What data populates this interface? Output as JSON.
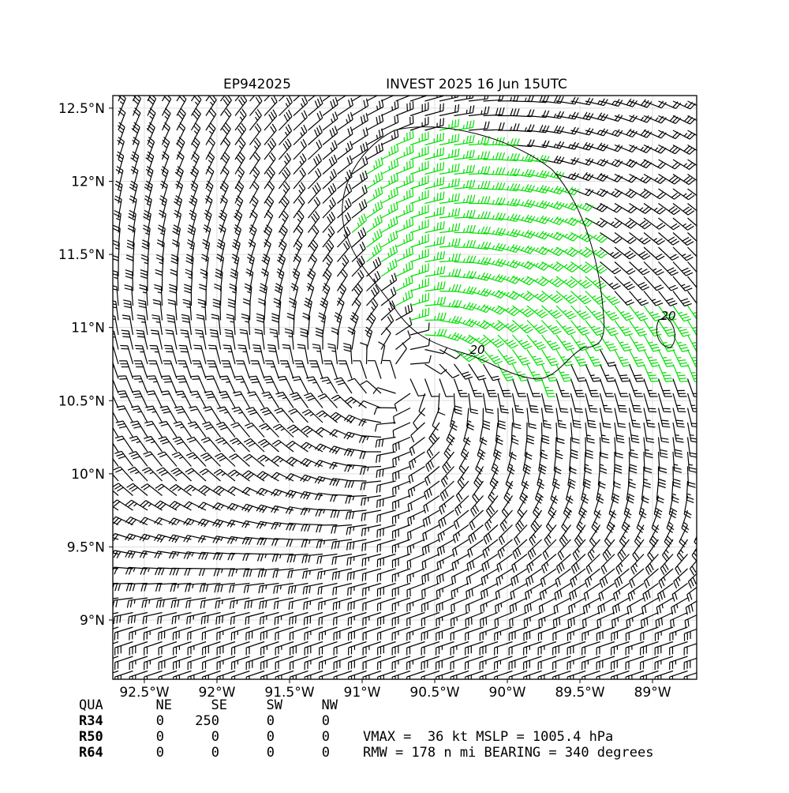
{
  "map": {
    "title_left": "EP942025",
    "title_right": "INVEST 2025 16 Jun 15UTC",
    "xlim": [
      -92.717,
      -88.696
    ],
    "ylim": [
      8.595,
      12.586
    ],
    "xticks": [
      {
        "value": -92.5,
        "label": "92.5°W"
      },
      {
        "value": -92,
        "label": "92°W"
      },
      {
        "value": -91.5,
        "label": "91.5°W"
      },
      {
        "value": -91,
        "label": "91°W"
      },
      {
        "value": -90.5,
        "label": "90.5°W"
      },
      {
        "value": -90,
        "label": "90°W"
      },
      {
        "value": -89.5,
        "label": "89.5°W"
      },
      {
        "value": -89,
        "label": "89°W"
      }
    ],
    "yticks": [
      {
        "value": 9,
        "label": "9°N"
      },
      {
        "value": 9.5,
        "label": "9.5°N"
      },
      {
        "value": 10,
        "label": "10°N"
      },
      {
        "value": 10.5,
        "label": "10.5°N"
      },
      {
        "value": 11,
        "label": "11°N"
      },
      {
        "value": 11.5,
        "label": "11.5°N"
      },
      {
        "value": 12,
        "label": "12°N"
      },
      {
        "value": 12.5,
        "label": "12.5°N"
      }
    ],
    "grid": true,
    "contour_labels": [
      "20",
      "20"
    ],
    "table": {
      "header": [
        "QUA",
        "NE",
        "SE",
        "SW",
        "NW"
      ],
      "rows": [
        [
          "R34",
          0,
          250,
          0,
          0
        ],
        [
          "R50",
          0,
          0,
          0,
          0
        ],
        [
          "R64",
          0,
          0,
          0,
          0
        ]
      ]
    },
    "info": [
      "VMAX =  36 kt MSLP = 1005.4 hPa",
      "RMW = 178 n mi BEARING = 340 degrees"
    ]
  }
}
